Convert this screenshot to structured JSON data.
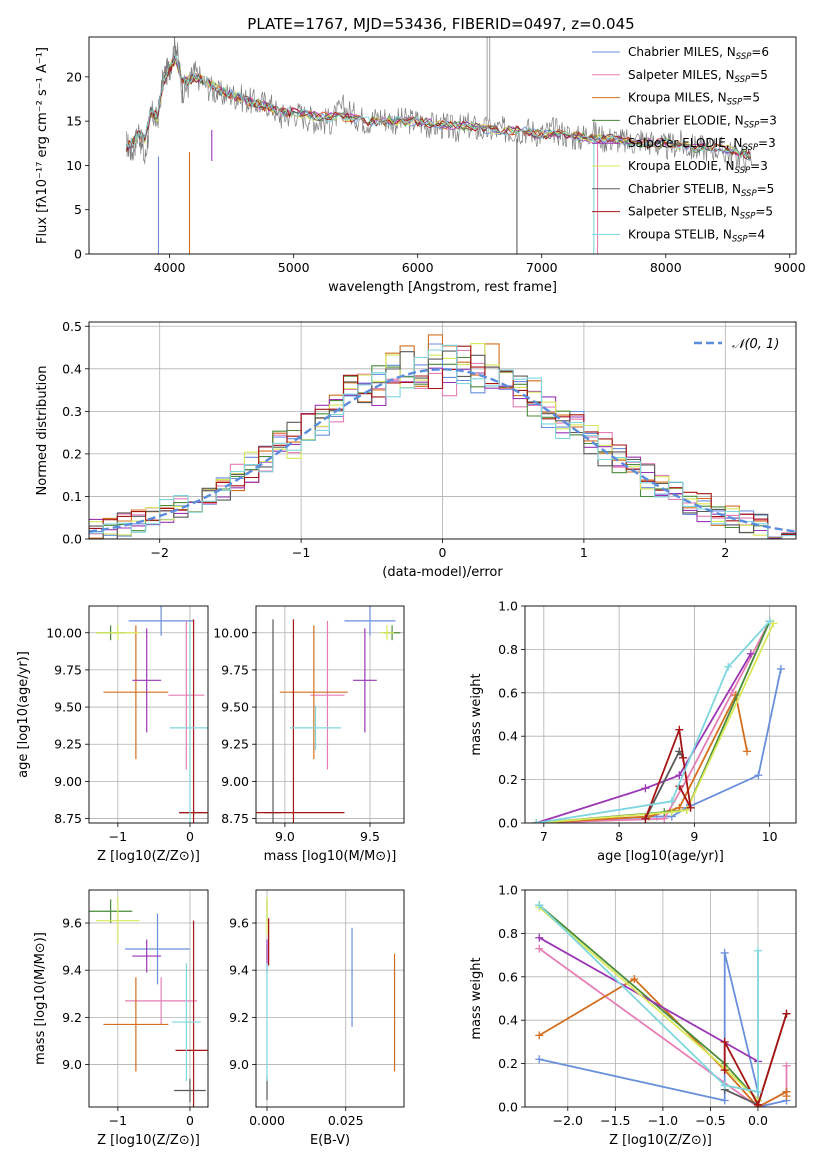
{
  "figure": {
    "title": "PLATE=1767, MJD=53436, FIBERID=0497, z=0.045"
  },
  "colors": [
    "#6a8fdc",
    "#e67fb5",
    "#d46f1f",
    "#4a8c3a",
    "#9b35b5",
    "#d8e85a",
    "#5a5a5a",
    "#a71414",
    "#7fd6de"
  ],
  "chart_data": [
    {
      "id": "spectrum",
      "type": "line",
      "xlabel": "wavelength [Angstrom, rest frame]",
      "ylabel": "Flux [fλ10⁻¹⁷ erg cm⁻² s⁻¹ A⁻¹]",
      "xlim": [
        3350,
        9050
      ],
      "ylim": [
        0,
        24.5
      ],
      "xticks": [
        4000,
        5000,
        6000,
        7000,
        8000,
        9000
      ],
      "yticks": [
        0,
        5,
        10,
        15,
        20
      ],
      "grid": false,
      "legend_position": "top-right",
      "observed": {
        "x": [
          3650,
          3700,
          3750,
          3800,
          3850,
          3900,
          3950,
          4000,
          4050,
          4100,
          4150,
          4200,
          4300,
          4400,
          4500,
          4600,
          4700,
          4800,
          4900,
          5000,
          5100,
          5200,
          5300,
          5400,
          5500,
          5600,
          5700,
          5800,
          5900,
          6000,
          6100,
          6200,
          6300,
          6400,
          6500,
          6600,
          6700,
          6800,
          6900,
          7000,
          7100,
          7200,
          7300,
          7400,
          7500,
          7600,
          7700,
          7800,
          7900,
          8000,
          8100,
          8200,
          8300,
          8400,
          8500,
          8600,
          8700
        ],
        "y": [
          12.5,
          11.5,
          14.0,
          10.5,
          16.0,
          15.0,
          20.0,
          21.0,
          24.0,
          18.5,
          19.0,
          20.5,
          19.0,
          18.0,
          18.0,
          17.5,
          17.0,
          17.0,
          15.5,
          16.0,
          15.5,
          15.0,
          15.0,
          16.5,
          15.5,
          15.0,
          15.5,
          15.0,
          15.0,
          15.0,
          14.5,
          14.5,
          14.0,
          14.5,
          14.0,
          14.0,
          14.0,
          14.0,
          14.0,
          13.5,
          14.0,
          13.5,
          13.0,
          14.0,
          13.0,
          13.0,
          12.5,
          13.0,
          12.5,
          12.0,
          12.5,
          12.0,
          12.0,
          12.0,
          11.5,
          11.0,
          11.0
        ]
      },
      "model": {
        "x": [
          3650,
          3700,
          3750,
          3800,
          3850,
          3900,
          3950,
          4000,
          4050,
          4100,
          4150,
          4200,
          4300,
          4400,
          4500,
          4600,
          4700,
          4800,
          4900,
          5000,
          5200,
          5400,
          5600,
          5800,
          6000,
          6200,
          6400,
          6600,
          6800,
          7000,
          7200,
          7400,
          7600,
          7800,
          8000,
          8200,
          8400,
          8600,
          8700
        ],
        "y": [
          12.0,
          12.5,
          13.5,
          13.0,
          16.0,
          15.5,
          19.5,
          21.0,
          22.0,
          19.5,
          19.5,
          20.0,
          19.5,
          18.5,
          18.0,
          17.5,
          17.0,
          16.5,
          16.0,
          16.0,
          15.5,
          15.5,
          15.0,
          15.0,
          15.0,
          14.5,
          14.5,
          14.0,
          14.0,
          13.5,
          13.5,
          13.0,
          13.0,
          12.5,
          12.5,
          12.0,
          12.0,
          11.5,
          11.0
        ]
      },
      "spikes": [
        {
          "x": 3910,
          "y0": 11.0,
          "y1": 0
        },
        {
          "x": 4160,
          "y0": 11.5,
          "y1": 0
        },
        {
          "x": 4340,
          "y0": 14.0,
          "y1": 10.5
        },
        {
          "x": 6800,
          "y0": 13.0,
          "y1": 0
        },
        {
          "x": 7420,
          "y0": 13.0,
          "y1": 0
        },
        {
          "x": 7450,
          "y0": 12.5,
          "y1": 0
        },
        {
          "x": 6560,
          "y0": 15.0,
          "y1": 24.5
        },
        {
          "x": 6580,
          "y0": 15.0,
          "y1": 24.5
        }
      ],
      "series": [
        {
          "name": "Chabrier MILES, N",
          "sub": "SSP",
          "tail": "=6"
        },
        {
          "name": "Salpeter MILES, N",
          "sub": "SSP",
          "tail": "=5"
        },
        {
          "name": "Kroupa MILES, N",
          "sub": "SSP",
          "tail": "=5"
        },
        {
          "name": "Chabrier ELODIE, N",
          "sub": "SSP",
          "tail": "=3"
        },
        {
          "name": "Salpeter ELODIE, N",
          "sub": "SSP",
          "tail": "=3"
        },
        {
          "name": "Kroupa ELODIE, N",
          "sub": "SSP",
          "tail": "=3"
        },
        {
          "name": "Chabrier STELIB, N",
          "sub": "SSP",
          "tail": "=5"
        },
        {
          "name": "Salpeter STELIB, N",
          "sub": "SSP",
          "tail": "=5"
        },
        {
          "name": "Kroupa STELIB, N",
          "sub": "SSP",
          "tail": "=4"
        }
      ]
    },
    {
      "id": "residuals",
      "type": "line",
      "xlabel": "(data-model)/error",
      "ylabel": "Normed distribution",
      "xlim": [
        -2.5,
        2.5
      ],
      "ylim": [
        0,
        0.51
      ],
      "xticks": [
        -2,
        -1,
        0,
        1,
        2
      ],
      "yticks": [
        0.0,
        0.1,
        0.2,
        0.3,
        0.4,
        0.5
      ],
      "grid": true,
      "legend_position": "top-right",
      "reference": {
        "name": "𝒩(0, 1)",
        "mean": 0,
        "sigma": 1
      },
      "bin_width": 0.1
    },
    {
      "id": "age_vs_Z",
      "type": "scatter",
      "xlabel": "Z [log10(Z/Z⊙)]",
      "ylabel": "age  [log10(age/yr)]",
      "xlim": [
        -1.4,
        0.25
      ],
      "ylim": [
        8.72,
        10.18
      ],
      "xticks": [
        -1,
        0
      ],
      "yticks": [
        8.75,
        9.0,
        9.25,
        9.5,
        9.75,
        10.0
      ],
      "grid": true,
      "points": [
        {
          "x": -0.4,
          "y": 10.08,
          "xerr": 0.45,
          "yerr": 0.1
        },
        {
          "x": -0.05,
          "y": 9.58,
          "xerr": 0.25,
          "yerr": 0.5
        },
        {
          "x": -0.75,
          "y": 9.6,
          "xerr": 0.45,
          "yerr": 0.45
        },
        {
          "x": -1.1,
          "y": 10.0,
          "xerr": 0.2,
          "yerr": 0.05
        },
        {
          "x": -0.6,
          "y": 9.68,
          "xerr": 0.2,
          "yerr": 0.35
        },
        {
          "x": -1.0,
          "y": 10.0,
          "xerr": 0.3,
          "yerr": 0.05
        },
        {
          "x": 0.05,
          "y": 8.79,
          "xerr": 0.2,
          "yerr": 0.02
        },
        {
          "x": 0.05,
          "y": 8.79,
          "xerr": 0.2,
          "yerr": 1.3
        },
        {
          "x": 0.0,
          "y": 9.36,
          "xerr": 0.28,
          "yerr": 0.7
        }
      ]
    },
    {
      "id": "age_vs_mass",
      "type": "scatter",
      "xlabel": "mass [log10(M/M⊙)]",
      "ylabel": "",
      "xlim": [
        8.83,
        9.7
      ],
      "ylim": [
        8.72,
        10.18
      ],
      "xticks": [
        9.0,
        9.5
      ],
      "yticks": [
        8.75,
        9.0,
        9.25,
        9.5,
        9.75,
        10.0
      ],
      "grid": true,
      "points": [
        {
          "x": 9.5,
          "y": 10.08,
          "xerr": 0.15,
          "yerr": 0.1
        },
        {
          "x": 9.25,
          "y": 9.58,
          "xerr": 0.1,
          "yerr": 0.5
        },
        {
          "x": 9.17,
          "y": 9.6,
          "xerr": 0.2,
          "yerr": 0.45
        },
        {
          "x": 9.63,
          "y": 10.0,
          "xerr": 0.05,
          "yerr": 0.05
        },
        {
          "x": 9.47,
          "y": 9.68,
          "xerr": 0.07,
          "yerr": 0.35
        },
        {
          "x": 9.6,
          "y": 10.0,
          "xerr": 0.04,
          "yerr": 0.05
        },
        {
          "x": 8.93,
          "y": 8.79,
          "xerr": 0.05,
          "yerr": 1.3
        },
        {
          "x": 9.05,
          "y": 8.79,
          "xerr": 0.3,
          "yerr": 1.3
        },
        {
          "x": 9.18,
          "y": 9.36,
          "xerr": 0.15,
          "yerr": 0.15
        }
      ]
    },
    {
      "id": "weight_vs_age",
      "type": "line",
      "xlabel": "age  [log10(age/yr)]",
      "ylabel": "mass weight",
      "xlim": [
        6.75,
        10.35
      ],
      "ylim": [
        0,
        1.0
      ],
      "xticks": [
        7,
        8,
        9,
        10
      ],
      "yticks": [
        0.0,
        0.2,
        0.4,
        0.6,
        0.8,
        1.0
      ],
      "grid": true,
      "series": [
        {
          "x": [
            6.9,
            8.5,
            8.7,
            8.9,
            9.85,
            10.15
          ],
          "y": [
            0.0,
            0.03,
            0.03,
            0.07,
            0.22,
            0.71
          ]
        },
        {
          "x": [
            6.9,
            8.6,
            8.9,
            9.5,
            10.0
          ],
          "y": [
            0.0,
            0.02,
            0.2,
            0.6,
            0.93
          ]
        },
        {
          "x": [
            6.9,
            8.4,
            8.8,
            9.55,
            9.7
          ],
          "y": [
            0.0,
            0.03,
            0.07,
            0.59,
            0.33
          ]
        },
        {
          "x": [
            6.9,
            8.6,
            8.9,
            10.0
          ],
          "y": [
            0.0,
            0.05,
            0.06,
            0.93
          ]
        },
        {
          "x": [
            6.9,
            8.35,
            8.8,
            9.75
          ],
          "y": [
            0.0,
            0.16,
            0.22,
            0.78
          ]
        },
        {
          "x": [
            6.9,
            8.7,
            8.9,
            10.05
          ],
          "y": [
            0.0,
            0.05,
            0.06,
            0.92
          ]
        },
        {
          "x": [
            8.35,
            8.8,
            8.85
          ],
          "y": [
            0.02,
            0.33,
            0.3
          ]
        },
        {
          "x": [
            8.35,
            8.8,
            8.85,
            8.95,
            8.8
          ],
          "y": [
            0.02,
            0.43,
            0.3,
            0.07,
            0.17
          ]
        },
        {
          "x": [
            6.9,
            8.7,
            9.45,
            10.0
          ],
          "y": [
            0.0,
            0.1,
            0.72,
            0.93
          ]
        }
      ]
    },
    {
      "id": "mass_vs_Z",
      "type": "scatter",
      "xlabel": "Z [log10(Z/Z⊙)]",
      "ylabel": "mass [log10(M/M⊙)]",
      "xlim": [
        -1.4,
        0.25
      ],
      "ylim": [
        8.82,
        9.74
      ],
      "xticks": [
        -1,
        0
      ],
      "yticks": [
        9.0,
        9.2,
        9.4,
        9.6
      ],
      "grid": true,
      "points": [
        {
          "x": -0.45,
          "y": 9.49,
          "xerr": 0.45,
          "yerr": 0.15
        },
        {
          "x": -0.4,
          "y": 9.27,
          "xerr": 0.5,
          "yerr": 0.1
        },
        {
          "x": -0.75,
          "y": 9.17,
          "xerr": 0.45,
          "yerr": 0.2
        },
        {
          "x": -1.1,
          "y": 9.65,
          "xerr": 0.3,
          "yerr": 0.05
        },
        {
          "x": -0.6,
          "y": 9.46,
          "xerr": 0.2,
          "yerr": 0.07
        },
        {
          "x": -1.0,
          "y": 9.61,
          "xerr": 0.3,
          "yerr": 0.1
        },
        {
          "x": 0.0,
          "y": 8.89,
          "xerr": 0.22,
          "yerr": 0.05
        },
        {
          "x": 0.05,
          "y": 9.06,
          "xerr": 0.25,
          "yerr": 0.55
        },
        {
          "x": -0.05,
          "y": 9.18,
          "xerr": 0.2,
          "yerr": 0.25
        }
      ]
    },
    {
      "id": "mass_vs_EBV",
      "type": "scatter",
      "xlabel": "E(B-V)",
      "ylabel": "",
      "xlim": [
        -0.0035,
        0.0435
      ],
      "ylim": [
        8.82,
        9.74
      ],
      "xticks": [
        0.0,
        0.025
      ],
      "xticklabels": [
        "0.000",
        "0.025"
      ],
      "yticks": [
        9.0,
        9.2,
        9.4,
        9.6
      ],
      "grid": true,
      "points": [
        {
          "x": 0.027,
          "y": 9.37,
          "xerr": 0,
          "yerr": 0.21
        },
        {
          "x": 0.0005,
          "y": 9.52,
          "xerr": 0,
          "yerr": 0.1
        },
        {
          "x": 0.0405,
          "y": 9.22,
          "xerr": 0,
          "yerr": 0.25
        },
        {
          "x": 0.0,
          "y": 9.65,
          "xerr": 0,
          "yerr": 0.05
        },
        {
          "x": 0.0,
          "y": 9.46,
          "xerr": 0,
          "yerr": 0.07
        },
        {
          "x": 0.0,
          "y": 9.63,
          "xerr": 0,
          "yerr": 0.08
        },
        {
          "x": 0.0,
          "y": 8.9,
          "xerr": 0,
          "yerr": 0.05
        },
        {
          "x": 0.0005,
          "y": 9.52,
          "xerr": 0,
          "yerr": 0.1
        },
        {
          "x": 0.0,
          "y": 9.18,
          "xerr": 0,
          "yerr": 0.25
        }
      ]
    },
    {
      "id": "weight_vs_Z",
      "type": "line",
      "xlabel": "Z [log10(Z/Z⊙)]",
      "ylabel": "mass weight",
      "xlim": [
        -2.45,
        0.4
      ],
      "ylim": [
        0,
        1.0
      ],
      "xticks": [
        -2.0,
        -1.5,
        -1.0,
        -0.5,
        0.0
      ],
      "yticks": [
        0.0,
        0.2,
        0.4,
        0.6,
        0.8,
        1.0
      ],
      "grid": true,
      "series": [
        {
          "x": [
            -2.3,
            -0.35,
            -0.35,
            0.0,
            0.0,
            0.3
          ],
          "y": [
            0.22,
            0.03,
            0.71,
            0.07,
            0.0,
            0.03
          ]
        },
        {
          "x": [
            -2.3,
            0.0,
            0.3,
            0.3
          ],
          "y": [
            0.73,
            0.0,
            0.07,
            0.19
          ]
        },
        {
          "x": [
            -2.3,
            -1.3,
            -0.35,
            0.0,
            0.3,
            0.3
          ],
          "y": [
            0.33,
            0.59,
            0.17,
            0.0,
            0.07,
            0.05
          ]
        },
        {
          "x": [
            -2.3,
            -0.35,
            0.0
          ],
          "y": [
            0.93,
            0.2,
            0.03
          ]
        },
        {
          "x": [
            -2.3,
            0.0
          ],
          "y": [
            0.78,
            0.21
          ]
        },
        {
          "x": [
            -2.3,
            -0.35,
            0.0
          ],
          "y": [
            0.92,
            0.18,
            0.03
          ]
        },
        {
          "x": [
            -0.35,
            0.0,
            0.3
          ],
          "y": [
            0.08,
            0.01,
            0.43
          ]
        },
        {
          "x": [
            -0.35,
            -0.35,
            0.0,
            0.3
          ],
          "y": [
            0.17,
            0.3,
            0.01,
            0.43
          ]
        },
        {
          "x": [
            -2.3,
            -0.35,
            0.0,
            0.0
          ],
          "y": [
            0.93,
            0.1,
            0.07,
            0.72
          ]
        }
      ]
    }
  ]
}
